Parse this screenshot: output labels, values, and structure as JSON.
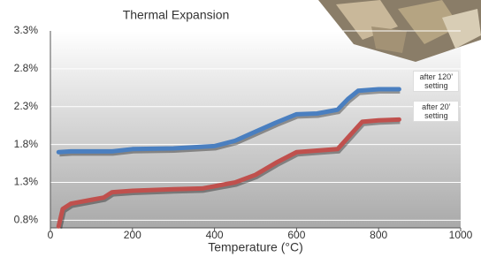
{
  "chart_data": {
    "type": "line",
    "title": "Thermal Expansion",
    "xlabel": "Temperature (°C)",
    "xlim": [
      0,
      1000
    ],
    "xticks": [
      0,
      200,
      400,
      600,
      800,
      1000
    ],
    "ylim": [
      0.7,
      3.3
    ],
    "yticks": [
      {
        "value": 0.8,
        "label": "0.8%"
      },
      {
        "value": 1.3,
        "label": "1.3%"
      },
      {
        "value": 1.8,
        "label": "1.8%"
      },
      {
        "value": 2.3,
        "label": "2.3%"
      },
      {
        "value": 2.8,
        "label": "2.8%"
      },
      {
        "value": 3.3,
        "label": "3.3%"
      }
    ],
    "grid": true,
    "series": [
      {
        "name": "after 120’ setting",
        "color": "#4a7fc0",
        "x": [
          20,
          50,
          150,
          200,
          300,
          400,
          450,
          500,
          550,
          600,
          650,
          700,
          725,
          750,
          800,
          850
        ],
        "values": [
          1.7,
          1.71,
          1.71,
          1.74,
          1.75,
          1.78,
          1.85,
          1.97,
          2.09,
          2.2,
          2.21,
          2.26,
          2.4,
          2.51,
          2.53,
          2.53
        ]
      },
      {
        "name": "after 20’ setting",
        "color": "#c0504d",
        "x": [
          20,
          30,
          50,
          100,
          130,
          150,
          200,
          300,
          370,
          450,
          500,
          550,
          600,
          650,
          700,
          730,
          760,
          800,
          850
        ],
        "values": [
          0.72,
          0.95,
          1.02,
          1.07,
          1.1,
          1.17,
          1.19,
          1.21,
          1.22,
          1.3,
          1.4,
          1.56,
          1.7,
          1.72,
          1.74,
          1.92,
          2.1,
          2.12,
          2.13
        ]
      }
    ]
  }
}
